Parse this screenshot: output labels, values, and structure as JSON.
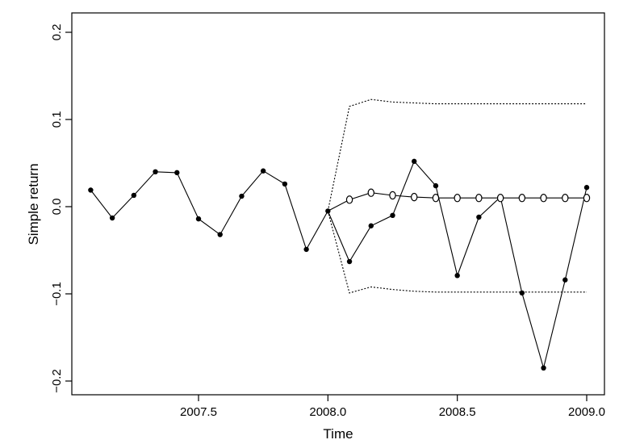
{
  "chart_data": {
    "type": "line",
    "title": "",
    "xlabel": "Time",
    "ylabel": "Simple return",
    "xlim": [
      2007.0833,
      2009.0
    ],
    "ylim": [
      -0.2,
      0.2
    ],
    "x_ticks": [
      2007.5,
      2008.0,
      2008.5,
      2009.0
    ],
    "x_tick_labels": [
      "2007.5",
      "2008.0",
      "2008.5",
      "2009.0"
    ],
    "y_ticks": [
      -0.2,
      -0.1,
      0.0,
      0.1,
      0.2
    ],
    "y_tick_labels": [
      "−0.2",
      "−0.1",
      "0.0",
      "0.1",
      "0.2"
    ],
    "grid": false,
    "series": [
      {
        "style": "solid line with filled points",
        "x": [
          2007.0833,
          2007.1667,
          2007.25,
          2007.3333,
          2007.4167,
          2007.5,
          2007.5833,
          2007.6667,
          2007.75,
          2007.8333,
          2007.9167,
          2008.0,
          2008.0833,
          2008.1667,
          2008.25,
          2008.3333,
          2008.4167,
          2008.5,
          2008.5833,
          2008.6667,
          2008.75,
          2008.8333,
          2008.9167,
          2009.0
        ],
        "values": [
          0.019,
          -0.013,
          0.013,
          0.04,
          0.039,
          -0.014,
          -0.032,
          0.012,
          0.041,
          0.026,
          -0.049,
          -0.005,
          -0.063,
          -0.022,
          -0.01,
          0.052,
          0.024,
          -0.079,
          -0.012,
          0.011,
          -0.099,
          -0.185,
          -0.084,
          0.022
        ]
      },
      {
        "style": "solid line with open circles",
        "x": [
          2008.0,
          2008.0833,
          2008.1667,
          2008.25,
          2008.3333,
          2008.4167,
          2008.5,
          2008.5833,
          2008.6667,
          2008.75,
          2008.8333,
          2008.9167,
          2009.0
        ],
        "values": [
          -0.005,
          0.008,
          0.016,
          0.013,
          0.011,
          0.01,
          0.01,
          0.01,
          0.01,
          0.01,
          0.01,
          0.01,
          0.01
        ]
      },
      {
        "style": "dotted upper band",
        "x": [
          2008.0,
          2008.0833,
          2008.1667,
          2008.25,
          2008.3333,
          2008.4167,
          2008.5,
          2008.5833,
          2008.6667,
          2008.75,
          2008.8333,
          2008.9167,
          2009.0
        ],
        "values": [
          -0.005,
          0.115,
          0.123,
          0.12,
          0.119,
          0.118,
          0.118,
          0.118,
          0.118,
          0.118,
          0.118,
          0.118,
          0.118
        ]
      },
      {
        "style": "dotted lower band",
        "x": [
          2008.0,
          2008.0833,
          2008.1667,
          2008.25,
          2008.3333,
          2008.4167,
          2008.5,
          2008.5833,
          2008.6667,
          2008.75,
          2008.8333,
          2008.9167,
          2009.0
        ],
        "values": [
          -0.005,
          -0.099,
          -0.092,
          -0.095,
          -0.097,
          -0.098,
          -0.098,
          -0.098,
          -0.098,
          -0.098,
          -0.098,
          -0.098,
          -0.098
        ]
      }
    ]
  }
}
